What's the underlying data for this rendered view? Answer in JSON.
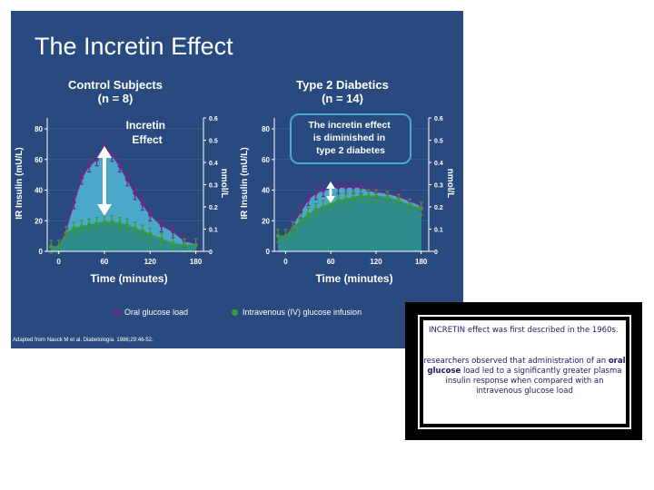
{
  "slide": {
    "title": "The Incretin Effect",
    "footnote": "Adapted from Nauck M et al. Diabetologia. 1986;29:46-52."
  },
  "legend": {
    "oral": "Oral glucose load",
    "iv": "Intravenous (IV) glucose infusion",
    "oral_color": "#6b2a8c",
    "iv_color": "#3a9a3a"
  },
  "note": {
    "p1": "INCRETIN effect was first described in the 1960s.",
    "p2_pre": "researchers observed that administration of an ",
    "p2_bold": "oral glucose",
    "p2_post": " load led to a significantly greater plasma insulin response when compared with an intravenous glucose load"
  },
  "colors": {
    "background": "#294a7f",
    "fill_oral": "#4aa8c8",
    "fill_iv": "#2f8c8c",
    "annotation_border": "#4aa8c8"
  },
  "chart_data": [
    {
      "type": "line",
      "title": "Control Subjects",
      "subtitle": "(n = 8)",
      "annotation": "Incretin Effect",
      "xlabel": "Time (minutes)",
      "ylabel": "IR Insulin (mU/L)",
      "y2label": "nmol/L",
      "xlim": [
        -15,
        190
      ],
      "ylim": [
        0,
        80
      ],
      "xticks": [
        0,
        60,
        120,
        180
      ],
      "yticks": [
        0,
        20,
        40,
        60,
        80
      ],
      "y2ticks": [
        "0",
        "0.1",
        "0.2",
        "0.3",
        "0.4",
        "0.5",
        "0.6"
      ],
      "x": [
        -10,
        0,
        10,
        20,
        30,
        40,
        50,
        60,
        70,
        80,
        90,
        100,
        110,
        120,
        135,
        150,
        165,
        180
      ],
      "series": [
        {
          "name": "Oral glucose load",
          "values": [
            3,
            3,
            15,
            32,
            48,
            56,
            60,
            68,
            63,
            56,
            47,
            38,
            31,
            24,
            17,
            13,
            7,
            5
          ]
        },
        {
          "name": "Intravenous (IV) glucose infusion",
          "values": [
            3,
            3,
            12,
            15,
            16,
            17,
            18,
            19,
            19,
            18,
            17,
            15,
            13,
            11,
            8,
            5,
            4,
            4
          ]
        }
      ]
    },
    {
      "type": "line",
      "title": "Type 2 Diabetics",
      "subtitle": "(n = 14)",
      "annotation": "The incretin effect is diminished in type 2 diabetes",
      "xlabel": "Time (minutes)",
      "ylabel": "IR Insulin (mU/L)",
      "y2label": "nmol/L",
      "xlim": [
        -15,
        190
      ],
      "ylim": [
        0,
        80
      ],
      "xticks": [
        0,
        60,
        120,
        180
      ],
      "yticks": [
        0,
        20,
        40,
        60,
        80
      ],
      "y2ticks": [
        "0",
        "0.1",
        "0.2",
        "0.3",
        "0.4",
        "0.5",
        "0.6"
      ],
      "x": [
        -10,
        0,
        10,
        20,
        30,
        40,
        50,
        60,
        70,
        80,
        90,
        100,
        110,
        120,
        135,
        150,
        165,
        180
      ],
      "series": [
        {
          "name": "Oral glucose load",
          "values": [
            10,
            10,
            18,
            26,
            34,
            38,
            40,
            41,
            42,
            42,
            42,
            42,
            40,
            39,
            38,
            36,
            33,
            30
          ]
        },
        {
          "name": "Intravenous (IV) glucose infusion",
          "values": [
            10,
            10,
            15,
            20,
            24,
            27,
            29,
            31,
            33,
            34,
            35,
            36,
            36,
            36,
            35,
            33,
            30,
            28
          ]
        }
      ]
    }
  ]
}
